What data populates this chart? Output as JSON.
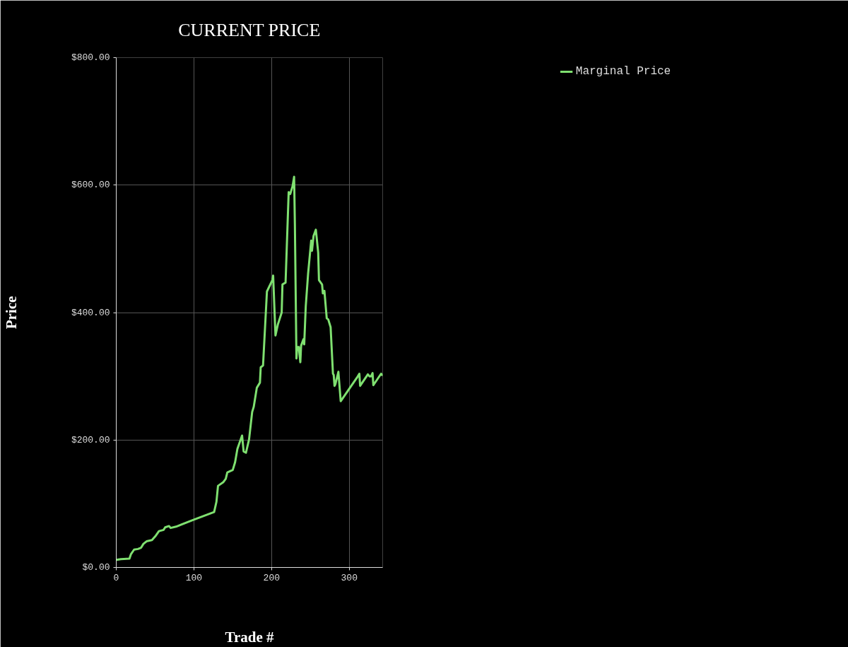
{
  "chart_data": {
    "type": "line",
    "title": "CURRENT PRICE",
    "xlabel": "Trade #",
    "ylabel": "Price",
    "xlim": [
      0,
      343
    ],
    "xticks": [
      0,
      100,
      200,
      300
    ],
    "ylim": [
      0,
      800
    ],
    "yticks": [
      {
        "value": 0,
        "label": "$0.00"
      },
      {
        "value": 200,
        "label": "$200.00"
      },
      {
        "value": 400,
        "label": "$400.00"
      },
      {
        "value": 600,
        "label": "$600.00"
      },
      {
        "value": 800,
        "label": "$800.00"
      }
    ],
    "grid": true,
    "legend": "top right",
    "marker": "none",
    "line_style": "solid",
    "series": [
      {
        "name": "Marginal Price",
        "color": "#7fe070",
        "x": [
          0,
          6,
          17,
          19,
          23,
          28,
          32,
          35,
          39,
          46,
          51,
          55,
          61,
          63,
          68,
          70,
          77,
          100,
          126,
          129,
          131,
          138,
          141,
          143,
          150,
          153,
          156,
          162,
          164,
          167,
          171,
          175,
          177,
          181,
          185,
          186,
          189,
          194,
          201,
          202,
          205,
          208,
          213,
          214,
          218,
          222,
          224,
          227,
          229,
          230,
          232,
          233,
          235,
          237,
          238,
          241,
          242,
          244,
          247,
          251,
          252,
          254,
          257,
          260,
          261,
          265,
          266,
          268,
          271,
          273,
          276,
          279,
          280,
          281,
          282,
          286,
          289,
          310,
          313,
          314,
          324,
          326,
          328,
          330,
          331,
          341,
          343
        ],
        "values": [
          12,
          13,
          14,
          21,
          28,
          29,
          31,
          37,
          41,
          43,
          50,
          57,
          59,
          63,
          65,
          62,
          64,
          75,
          87,
          103,
          128,
          134,
          139,
          149,
          153,
          165,
          186,
          207,
          182,
          180,
          201,
          244,
          252,
          282,
          290,
          314,
          317,
          433,
          451,
          458,
          364,
          381,
          400,
          444,
          447,
          589,
          586,
          598,
          613,
          538,
          328,
          346,
          346,
          322,
          348,
          358,
          350,
          410,
          461,
          513,
          497,
          520,
          530,
          494,
          451,
          444,
          430,
          434,
          391,
          389,
          377,
          304,
          302,
          285,
          287,
          307,
          261,
          298,
          304,
          285,
          303,
          300,
          300,
          305,
          286,
          304,
          301
        ]
      }
    ]
  }
}
